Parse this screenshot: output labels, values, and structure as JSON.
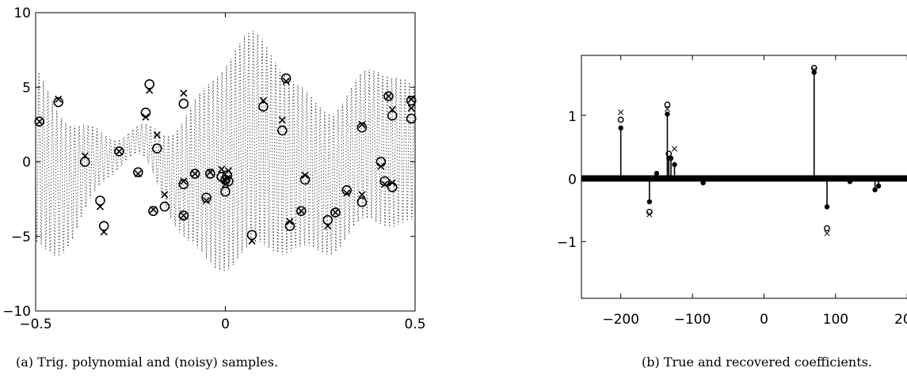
{
  "captions": {
    "a": "(a) Trig. polynomial and (noisy) samples.",
    "b": "(b) True and recovered coefficients."
  },
  "chart_data": [
    {
      "type": "scatter",
      "title": "",
      "xlabel": "",
      "ylabel": "",
      "xlim": [
        -0.5,
        0.5
      ],
      "ylim": [
        -10,
        10
      ],
      "xticks": [
        -0.5,
        0,
        0.5
      ],
      "xtick_labels": [
        "−0.5",
        "0",
        "0.5"
      ],
      "yticks": [
        -10,
        -5,
        0,
        5,
        10
      ],
      "ytick_labels": [
        "−10",
        "−5",
        "0",
        "5",
        "10"
      ],
      "background_series": "dotted trigonometric polynomial",
      "series": [
        {
          "marker": "circle",
          "x": [
            -0.49,
            -0.44,
            -0.37,
            -0.33,
            -0.32,
            -0.28,
            -0.23,
            -0.21,
            -0.2,
            -0.19,
            -0.18,
            -0.16,
            -0.11,
            -0.11,
            -0.11,
            -0.08,
            -0.05,
            -0.04,
            -0.01,
            0.0,
            0.005,
            0.008,
            0.0,
            0.07,
            0.1,
            0.15,
            0.16,
            0.17,
            0.2,
            0.21,
            0.27,
            0.29,
            0.32,
            0.36,
            0.36,
            0.41,
            0.42,
            0.43,
            0.44,
            0.44,
            0.49,
            0.49
          ],
          "y": [
            2.7,
            4.0,
            0.0,
            -2.6,
            -4.3,
            0.7,
            -0.7,
            3.3,
            5.2,
            -3.3,
            0.9,
            -3.0,
            3.9,
            -1.5,
            -3.6,
            -0.8,
            -2.4,
            -0.8,
            -1.0,
            -1.2,
            -0.9,
            -1.3,
            -2.0,
            -4.9,
            3.7,
            2.1,
            5.6,
            -4.3,
            -3.3,
            -1.2,
            -3.9,
            -3.4,
            -1.9,
            -2.7,
            2.3,
            0.0,
            -1.3,
            4.4,
            3.1,
            -1.7,
            4.1,
            2.9
          ]
        },
        {
          "marker": "x",
          "x": [
            -0.49,
            -0.44,
            -0.37,
            -0.33,
            -0.32,
            -0.28,
            -0.23,
            -0.21,
            -0.2,
            -0.19,
            -0.18,
            -0.16,
            -0.11,
            -0.11,
            -0.11,
            -0.08,
            -0.05,
            -0.04,
            -0.01,
            0.0,
            0.005,
            0.008,
            0.0,
            0.07,
            0.1,
            0.15,
            0.16,
            0.17,
            0.2,
            0.21,
            0.27,
            0.29,
            0.32,
            0.36,
            0.36,
            0.41,
            0.42,
            0.43,
            0.44,
            0.44,
            0.49,
            0.49
          ],
          "y": [
            2.7,
            4.2,
            0.4,
            -3.0,
            -4.7,
            0.7,
            -0.8,
            3.0,
            4.8,
            -3.2,
            1.8,
            -2.2,
            4.6,
            -1.3,
            -3.6,
            -0.8,
            -2.6,
            -0.7,
            -0.5,
            -1.3,
            -1.1,
            -0.6,
            -1.5,
            -5.3,
            4.1,
            2.8,
            5.4,
            -4.0,
            -3.3,
            -0.9,
            -4.3,
            -3.4,
            -2.1,
            -2.2,
            2.5,
            -0.3,
            -1.5,
            4.4,
            3.5,
            -1.4,
            4.2,
            3.6
          ]
        }
      ]
    },
    {
      "type": "stem",
      "title": "",
      "xlabel": "",
      "ylabel": "",
      "xlim": [
        -255,
        265
      ],
      "ylim": [
        -1.9,
        1.95
      ],
      "xticks": [
        -200,
        -100,
        0,
        100,
        200
      ],
      "xtick_labels": [
        "−200",
        "−100",
        "0",
        "100",
        "200"
      ],
      "yticks": [
        -1,
        0,
        1
      ],
      "ytick_labels": [
        "−1",
        "0",
        "1"
      ],
      "series": [
        {
          "marker": "filled-dot",
          "x": [
            -200,
            -160,
            -150,
            -135,
            -133,
            -130,
            -125,
            70,
            88,
            -85,
            120,
            155,
            160
          ],
          "y": [
            0.8,
            -0.37,
            0.08,
            1.02,
            0.32,
            0.32,
            0.22,
            1.68,
            -0.45,
            -0.07,
            -0.05,
            -0.18,
            -0.12
          ]
        },
        {
          "marker": "circle",
          "x": [
            -200,
            -160,
            -135,
            -133,
            70,
            88
          ],
          "y": [
            0.93,
            -0.53,
            1.17,
            0.39,
            1.75,
            -0.79
          ]
        },
        {
          "marker": "x",
          "x": [
            -200,
            -160,
            -135,
            -125,
            70,
            88
          ],
          "y": [
            1.05,
            -0.57,
            1.1,
            0.47,
            1.72,
            -0.87
          ]
        }
      ]
    }
  ]
}
